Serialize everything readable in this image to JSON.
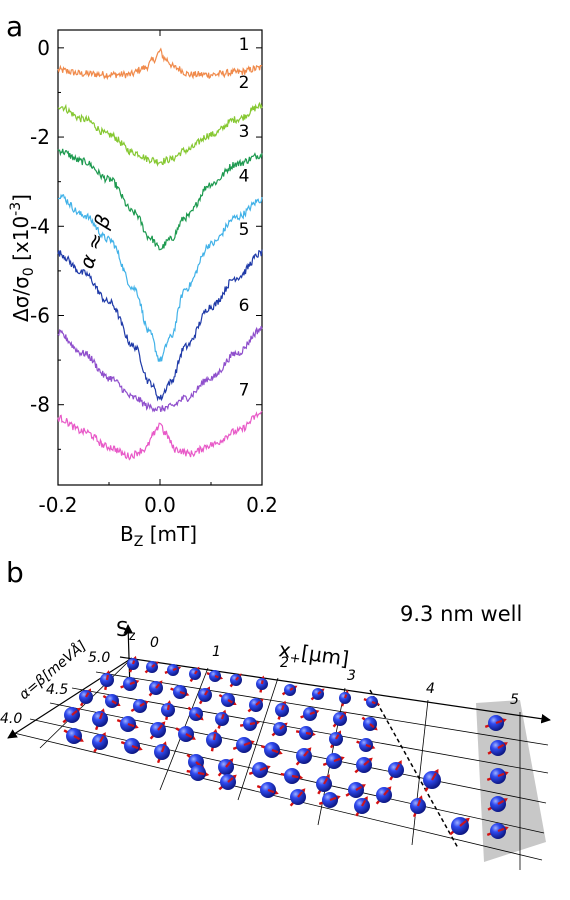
{
  "panel_a": {
    "label": "a",
    "chart_data": {
      "type": "line",
      "xlabel": "B",
      "xlabel_sub": "Z",
      "xlabel_unit": "[mT]",
      "ylabel": "Δσ/σ",
      "ylabel_sub": "0",
      "ylabel_unit": "[x10",
      "ylabel_exp": "-3",
      "ylabel_close": "]",
      "xlim": [
        -0.2,
        0.2
      ],
      "ylim": [
        -9.8,
        0.4
      ],
      "xticks": [
        -0.2,
        0.0,
        0.2
      ],
      "xtick_labels": [
        "-0.2",
        "0.0",
        "0.2"
      ],
      "yticks": [
        0,
        -2,
        -4,
        -6,
        -8
      ],
      "ytick_labels": [
        "0",
        "-2",
        "-4",
        "-6",
        "-8"
      ],
      "annotation": "α ≈ β",
      "series": [
        {
          "name": "1",
          "color": "#f08a4b",
          "x": [
            -0.2,
            -0.15,
            -0.1,
            -0.06,
            -0.03,
            -0.01,
            0,
            0.01,
            0.03,
            0.06,
            0.1,
            0.15,
            0.2
          ],
          "y": [
            -0.5,
            -0.58,
            -0.6,
            -0.6,
            -0.45,
            -0.25,
            -0.08,
            -0.25,
            -0.45,
            -0.6,
            -0.6,
            -0.55,
            -0.45
          ]
        },
        {
          "name": "2",
          "color": "#86c832",
          "x": [
            -0.2,
            -0.15,
            -0.1,
            -0.05,
            -0.02,
            0,
            0.02,
            0.05,
            0.1,
            0.15,
            0.2
          ],
          "y": [
            -1.3,
            -1.6,
            -1.95,
            -2.35,
            -2.5,
            -2.55,
            -2.5,
            -2.3,
            -1.95,
            -1.6,
            -1.3
          ]
        },
        {
          "name": "3",
          "color": "#1e9a50",
          "x": [
            -0.2,
            -0.15,
            -0.1,
            -0.05,
            -0.02,
            0,
            0.02,
            0.05,
            0.1,
            0.15,
            0.2
          ],
          "y": [
            -2.3,
            -2.55,
            -2.95,
            -3.7,
            -4.25,
            -4.5,
            -4.3,
            -3.8,
            -3.05,
            -2.6,
            -2.4
          ]
        },
        {
          "name": "4",
          "color": "#42b2e8",
          "x": [
            -0.2,
            -0.15,
            -0.1,
            -0.05,
            -0.02,
            0,
            0.02,
            0.05,
            0.1,
            0.15,
            0.2
          ],
          "y": [
            -3.3,
            -3.75,
            -4.3,
            -5.4,
            -6.4,
            -7.0,
            -6.5,
            -5.4,
            -4.4,
            -3.8,
            -3.4
          ]
        },
        {
          "name": "5",
          "color": "#1f3aa8",
          "x": [
            -0.2,
            -0.15,
            -0.1,
            -0.05,
            -0.02,
            0,
            0.02,
            0.05,
            0.1,
            0.15,
            0.2
          ],
          "y": [
            -4.6,
            -5.05,
            -5.7,
            -6.7,
            -7.5,
            -7.85,
            -7.5,
            -6.7,
            -5.8,
            -5.15,
            -4.6
          ]
        },
        {
          "name": "6",
          "color": "#8f4fcc",
          "x": [
            -0.2,
            -0.15,
            -0.1,
            -0.05,
            -0.02,
            0,
            0.02,
            0.05,
            0.1,
            0.15,
            0.2
          ],
          "y": [
            -6.4,
            -6.85,
            -7.4,
            -7.85,
            -8.05,
            -8.1,
            -8.05,
            -7.85,
            -7.4,
            -6.85,
            -6.3
          ]
        },
        {
          "name": "7",
          "color": "#e85ac8",
          "x": [
            -0.2,
            -0.15,
            -0.1,
            -0.06,
            -0.03,
            -0.01,
            0,
            0.01,
            0.03,
            0.06,
            0.1,
            0.15,
            0.2
          ],
          "y": [
            -8.3,
            -8.6,
            -8.95,
            -9.15,
            -9.0,
            -8.65,
            -8.4,
            -8.65,
            -9.0,
            -9.1,
            -8.9,
            -8.6,
            -8.2
          ]
        }
      ]
    }
  },
  "panel_b": {
    "label": "b",
    "well_note": "9.3 nm well",
    "sz_label": "S",
    "sz_sub": "z",
    "x_axis_label": "x",
    "x_axis_sub": "+",
    "x_axis_unit": "[µm]",
    "x_ticks": [
      "0",
      "1",
      "2",
      "3",
      "4",
      "5"
    ],
    "alpha_axis_label": "α=β[meVÅ]",
    "alpha_ticks": [
      "4.0",
      "4.5",
      "5.0"
    ],
    "colors": {
      "sphere": "#1a2fd8",
      "arrow": "#d41010",
      "shade": "#c8c8c8"
    }
  }
}
